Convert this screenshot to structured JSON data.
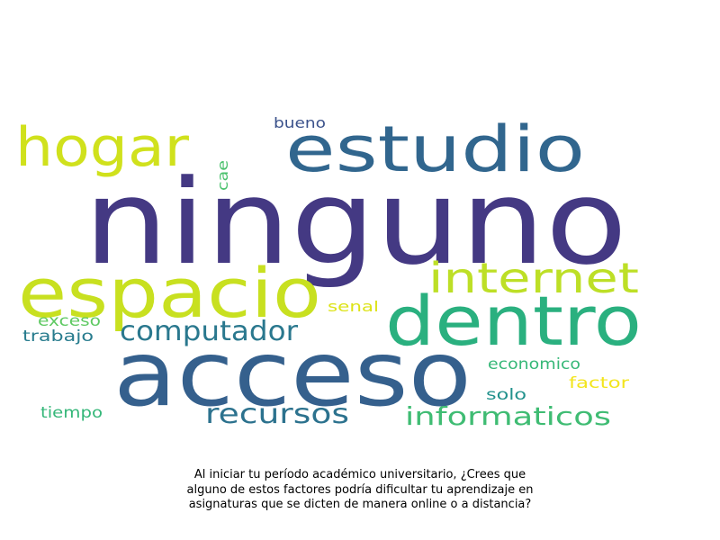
{
  "wordcloud": {
    "words": [
      {
        "id": "ninguno",
        "text": "ninguno",
        "color": "#443983"
      },
      {
        "id": "acceso",
        "text": "acceso",
        "color": "#35608d"
      },
      {
        "id": "dentro",
        "text": "dentro",
        "color": "#2ab07f"
      },
      {
        "id": "estudio",
        "text": "estudio",
        "color": "#31668e"
      },
      {
        "id": "espacio",
        "text": "espacio",
        "color": "#c8e020"
      },
      {
        "id": "hogar",
        "text": "hogar",
        "color": "#d0e11c"
      },
      {
        "id": "internet",
        "text": "internet",
        "color": "#bddf26"
      },
      {
        "id": "computador",
        "text": "computador",
        "color": "#2a788e"
      },
      {
        "id": "recursos",
        "text": "recursos",
        "color": "#2c728e"
      },
      {
        "id": "informaticos",
        "text": "informaticos",
        "color": "#3fbc73"
      },
      {
        "id": "bueno",
        "text": "bueno",
        "color": "#3b528b"
      },
      {
        "id": "cae",
        "text": "cae",
        "color": "#4ac16d"
      },
      {
        "id": "senal",
        "text": "senal",
        "color": "#dde318"
      },
      {
        "id": "exceso",
        "text": "exceso",
        "color": "#5ec962"
      },
      {
        "id": "trabajo",
        "text": "trabajo",
        "color": "#287c8e"
      },
      {
        "id": "economico",
        "text": "economico",
        "color": "#37b878"
      },
      {
        "id": "factor",
        "text": "factor",
        "color": "#f3e51e"
      },
      {
        "id": "solo",
        "text": "solo",
        "color": "#21918c"
      },
      {
        "id": "tiempo",
        "text": "tiempo",
        "color": "#35b779"
      }
    ]
  },
  "caption": {
    "lines": [
      "Al iniciar tu período académico universitario, ¿Crees que",
      "alguno de estos factores podría dificultar tu aprendizaje en",
      "asignaturas que se dicten de manera online o a distancia?"
    ]
  }
}
